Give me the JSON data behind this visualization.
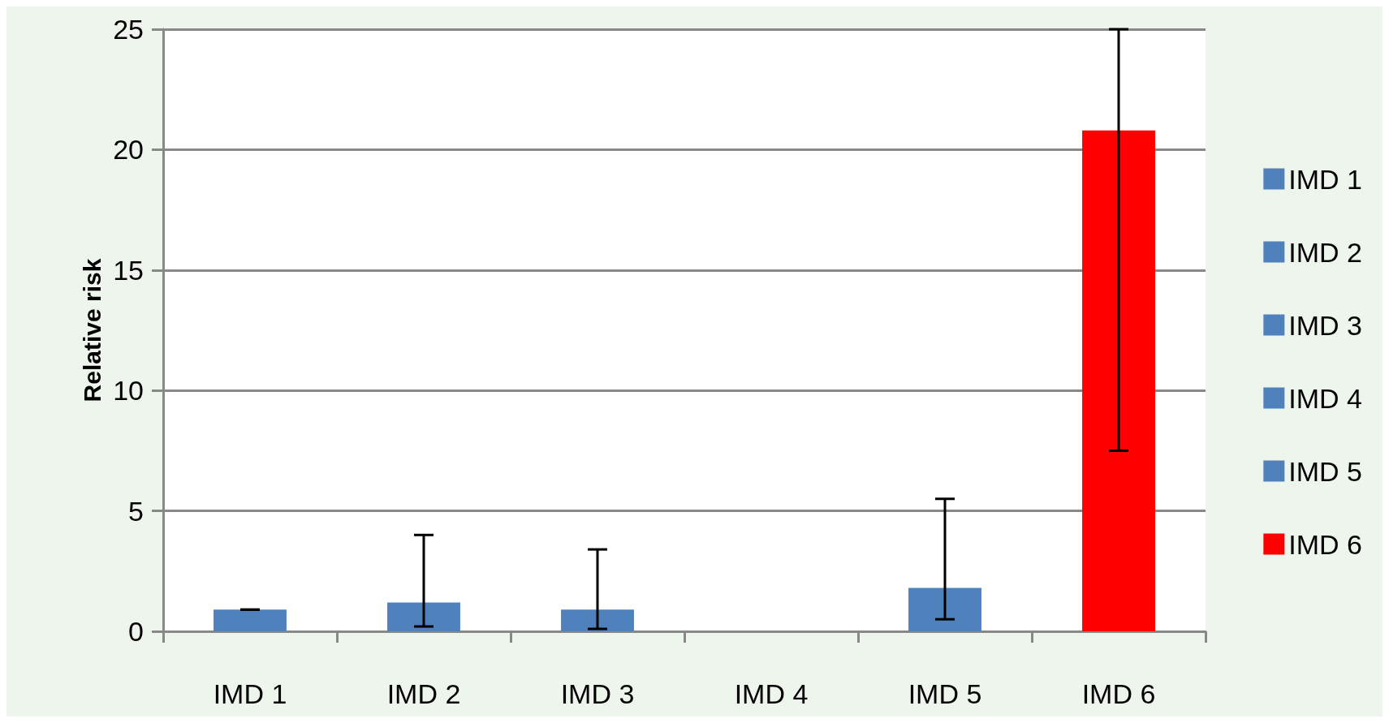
{
  "chart_data": {
    "type": "bar",
    "ylabel": "Relative risk",
    "stacked": true,
    "categories": [
      "IMD 1",
      "IMD 2",
      "IMD 3",
      "IMD 4",
      "IMD 5",
      "IMD 6"
    ],
    "series": [
      {
        "name": "IMD 1",
        "color": "#4f81bd",
        "values": [
          0.9,
          null,
          null,
          null,
          null,
          null
        ],
        "errors": [
          0,
          null,
          null,
          null,
          null,
          null
        ]
      },
      {
        "name": "IMD 2",
        "color": "#4f81bd",
        "values": [
          null,
          1.2,
          null,
          null,
          null,
          null
        ],
        "errors": [
          null,
          [
            0.2,
            4.0
          ],
          null,
          null,
          null,
          null
        ]
      },
      {
        "name": "IMD 3",
        "color": "#4f81bd",
        "values": [
          null,
          null,
          0.9,
          null,
          null,
          null
        ],
        "errors": [
          null,
          null,
          [
            0.1,
            3.4
          ],
          null,
          null,
          null
        ]
      },
      {
        "name": "IMD 4",
        "color": "#4f81bd",
        "values": [
          null,
          null,
          null,
          null,
          null,
          null
        ]
      },
      {
        "name": "IMD 5",
        "color": "#4f81bd",
        "values": [
          null,
          null,
          null,
          null,
          1.8,
          null
        ],
        "errors": [
          null,
          null,
          null,
          null,
          [
            0.5,
            5.5
          ],
          null
        ]
      },
      {
        "name": "IMD 6",
        "color": "#ff0000",
        "values": [
          null,
          null,
          null,
          null,
          null,
          20.8
        ],
        "errors": [
          null,
          null,
          null,
          null,
          null,
          [
            7.5,
            25
          ]
        ]
      }
    ],
    "ylim": [
      0,
      25
    ],
    "yticks": [
      0,
      5,
      10,
      15,
      20,
      25
    ],
    "grid": "y",
    "legend": "right"
  }
}
